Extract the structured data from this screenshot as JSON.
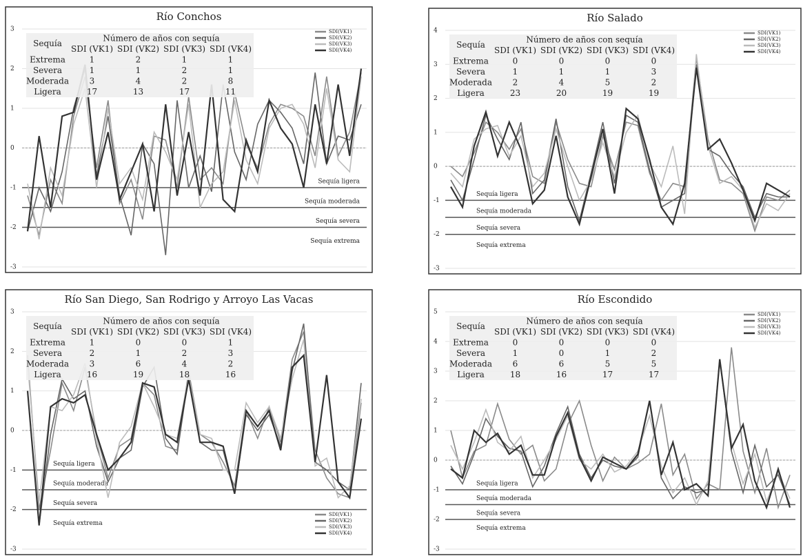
{
  "chart_data": [
    {
      "type": "line",
      "title": "Río Conchos",
      "legend": "top-right",
      "grid": true,
      "ylim": [
        -3,
        3
      ],
      "yticks": [
        -3,
        -2,
        -1,
        0,
        1,
        2,
        3
      ],
      "thresholds": [
        {
          "value": -1,
          "label": "Sequía ligera"
        },
        {
          "value": -1.5,
          "label": "Sequía moderada"
        },
        {
          "value": -2,
          "label": "Sequía severa"
        },
        {
          "value": -2.5,
          "label": "Sequía extrema"
        }
      ],
      "table": {
        "header": "Número de años con sequía",
        "row_header": "Sequía",
        "columns": [
          "SDI (VK1)",
          "SDI (VK2)",
          "SDI (VK3)",
          "SDI (VK4)"
        ],
        "rows": [
          [
            "Extrema",
            1,
            2,
            1,
            1
          ],
          [
            "Severa",
            1,
            1,
            2,
            1
          ],
          [
            "Moderada",
            3,
            4,
            2,
            8
          ],
          [
            "Ligera",
            17,
            13,
            17,
            11
          ]
        ]
      },
      "series": [
        {
          "name": "SDI(VK1)",
          "color": "#8a8a8a",
          "values": [
            -1.2,
            -2.2,
            -0.8,
            -1.4,
            0.8,
            1.8,
            -0.5,
            1.2,
            -1.4,
            -0.8,
            -1.8,
            0.3,
            0.2,
            -1.0,
            1.3,
            -0.8,
            -0.5,
            -0.9,
            1.4,
            0.1,
            -0.5,
            0.6,
            1.1,
            1.0,
            0.8,
            -0.2,
            1.8,
            -0.2,
            0.4,
            1.9
          ]
        },
        {
          "name": "SDI(VK2)",
          "color": "#666666",
          "values": [
            -2.1,
            -1.0,
            -1.6,
            -0.6,
            1.0,
            2.0,
            -0.7,
            0.8,
            -1.2,
            -2.2,
            0.1,
            -0.4,
            -2.7,
            1.2,
            -1.0,
            -0.2,
            -1.1,
            1.6,
            -0.1,
            -0.8,
            0.6,
            1.2,
            0.9,
            0.5,
            -0.4,
            1.9,
            -0.4,
            0.3,
            0.2,
            1.1
          ]
        },
        {
          "name": "SDI(VK3)",
          "color": "#bbbbbb",
          "values": [
            -0.9,
            -2.3,
            -0.5,
            -1.2,
            0.6,
            1.5,
            -1.0,
            1.0,
            -0.9,
            -0.5,
            -1.3,
            0.4,
            -0.1,
            -0.8,
            1.1,
            -1.5,
            -0.9,
            -0.6,
            1.2,
            -0.3,
            -0.9,
            0.5,
            1.0,
            1.1,
            0.6,
            -0.5,
            1.5,
            -0.3,
            -0.6,
            1.8
          ]
        },
        {
          "name": "SDI(VK4)",
          "color": "#333333",
          "values": [
            -2.1,
            0.3,
            -1.5,
            0.8,
            0.9,
            2.1,
            -0.8,
            0.4,
            -1.3,
            -0.6,
            0.1,
            -1.6,
            1.1,
            -1.2,
            0.4,
            -1.2,
            1.6,
            -1.3,
            -1.6,
            0.2,
            -0.6,
            1.2,
            0.5,
            0.1,
            -1.0,
            1.1,
            -0.4,
            1.6,
            -0.2,
            2.0
          ]
        }
      ]
    },
    {
      "type": "line",
      "title": "Río Salado",
      "legend": "top-right",
      "grid": true,
      "ylim": [
        -3,
        4
      ],
      "yticks": [
        -3,
        -2,
        -1,
        0,
        1,
        2,
        3,
        4
      ],
      "thresholds": [
        {
          "value": -1,
          "label": "Sequía ligera"
        },
        {
          "value": -1.5,
          "label": "Sequía moderada"
        },
        {
          "value": -2,
          "label": "Sequía severa"
        },
        {
          "value": -2.5,
          "label": "Sequía extrema"
        }
      ],
      "table": {
        "header": "Número de años con sequía",
        "row_header": "Sequía",
        "columns": [
          "SDI (VK1)",
          "SDI (VK2)",
          "SDI (VK3)",
          "SDI (VK4)"
        ],
        "rows": [
          [
            "Extrema",
            0,
            0,
            0,
            0
          ],
          [
            "Severa",
            1,
            1,
            1,
            3
          ],
          [
            "Moderada",
            2,
            4,
            5,
            2
          ],
          [
            "Ligera",
            23,
            20,
            19,
            19
          ]
        ]
      },
      "series": [
        {
          "name": "SDI(VK1)",
          "color": "#8a8a8a",
          "values": [
            0,
            -0.3,
            0.4,
            1.3,
            1.0,
            0.5,
            1.1,
            -0.3,
            -0.5,
            1.3,
            0.2,
            -0.5,
            -0.6,
            0.9,
            -0.1,
            1.3,
            1.2,
            -0.2,
            -1.0,
            -0.5,
            -0.6,
            3.2,
            0.8,
            -0.4,
            -0.5,
            -0.8,
            -1.9,
            -0.9,
            -1.0,
            -0.7
          ]
        },
        {
          "name": "SDI(VK2)",
          "color": "#666666",
          "values": [
            -0.4,
            -1.0,
            0.2,
            1.5,
            0.8,
            0.2,
            1.3,
            -0.8,
            -0.4,
            1.4,
            -0.6,
            -1.6,
            -0.2,
            1.3,
            -0.5,
            1.5,
            1.3,
            -0.1,
            -1.2,
            -1.0,
            -0.8,
            3.0,
            0.5,
            0.3,
            -0.2,
            -0.6,
            -1.5,
            -0.8,
            -0.9,
            -0.9
          ]
        },
        {
          "name": "SDI(VK3)",
          "color": "#bbbbbb",
          "values": [
            -0.2,
            -0.6,
            0.8,
            1.1,
            1.2,
            0.3,
            0.9,
            -0.6,
            -0.2,
            1.1,
            0.0,
            -1.0,
            -0.4,
            0.7,
            -0.3,
            1.0,
            1.5,
            0.1,
            -0.6,
            0.6,
            -1.4,
            3.3,
            0.6,
            -0.5,
            -0.3,
            -0.7,
            -1.8,
            -1.1,
            -1.3,
            -0.8
          ]
        },
        {
          "name": "SDI(VK4)",
          "color": "#333333",
          "values": [
            -0.6,
            -1.2,
            0.6,
            1.6,
            0.3,
            1.3,
            0.5,
            -1.1,
            -0.7,
            0.9,
            -0.9,
            -1.7,
            -0.3,
            1.1,
            -0.8,
            1.7,
            1.4,
            0.2,
            -1.2,
            -1.7,
            -0.5,
            2.9,
            0.5,
            0.8,
            0.1,
            -0.7,
            -1.6,
            -0.5,
            -0.7,
            -0.9
          ]
        }
      ]
    },
    {
      "type": "line",
      "title": "Río San Diego, San Rodrigo y Arroyo Las Vacas",
      "legend": "bottom-right",
      "grid": true,
      "ylim": [
        -3,
        3
      ],
      "yticks": [
        -3,
        -2,
        -1,
        0,
        1,
        2,
        3
      ],
      "thresholds": [
        {
          "value": -1,
          "label": "Sequía ligera"
        },
        {
          "value": -1.5,
          "label": "Sequía moderada"
        },
        {
          "value": -2,
          "label": "Sequía severa"
        },
        {
          "value": -2.5,
          "label": "Sequía extrema"
        }
      ],
      "table": {
        "header": "Número de años con sequía",
        "row_header": "Sequía",
        "columns": [
          "SDI (VK1)",
          "SDI (VK2)",
          "SDI (VK3)",
          "SDI (VK4)"
        ],
        "rows": [
          [
            "Extrema",
            1,
            0,
            0,
            1
          ],
          [
            "Severa",
            2,
            1,
            2,
            3
          ],
          [
            "Moderada",
            3,
            6,
            4,
            2
          ],
          [
            "Ligera",
            16,
            19,
            18,
            16
          ]
        ]
      },
      "series": [
        {
          "name": "SDI(VK1)",
          "color": "#8a8a8a",
          "values": [
            1.9,
            -2.0,
            -0.5,
            1.2,
            0.5,
            1.6,
            -0.1,
            -1.2,
            -0.4,
            -0.2,
            1.2,
            0.9,
            -0.4,
            -0.5,
            1.5,
            -0.1,
            -0.3,
            -0.8,
            -1.4,
            0.5,
            -0.2,
            0.6,
            -0.3,
            1.8,
            2.5,
            -0.5,
            -1.2,
            -1.6,
            -1.7,
            0.7
          ]
        },
        {
          "name": "SDI(VK2)",
          "color": "#666666",
          "values": [
            1.0,
            -2.4,
            -0.1,
            1.3,
            0.8,
            1.0,
            -0.4,
            -1.3,
            -0.7,
            -0.5,
            1.1,
            1.6,
            -0.2,
            -0.6,
            1.4,
            -0.3,
            -0.5,
            -0.5,
            -1.6,
            0.4,
            0.0,
            0.4,
            -0.4,
            1.5,
            2.7,
            -0.8,
            -1.0,
            -1.3,
            -1.5,
            1.2
          ]
        },
        {
          "name": "SDI(VK3)",
          "color": "#bbbbbb",
          "values": [
            1.7,
            -1.8,
            0.6,
            0.5,
            0.9,
            1.7,
            -0.2,
            -1.7,
            -0.3,
            0.1,
            1.2,
            0.6,
            -0.1,
            -0.2,
            1.4,
            -0.1,
            -0.2,
            -1.0,
            -1.0,
            0.7,
            0.2,
            0.6,
            -0.2,
            1.3,
            2.3,
            -0.9,
            -0.7,
            -1.7,
            -1.4,
            0.8
          ]
        },
        {
          "name": "SDI(VK4)",
          "color": "#333333",
          "values": [
            1.0,
            -2.4,
            0.6,
            0.8,
            0.7,
            0.9,
            -0.1,
            -1.0,
            -0.7,
            -0.3,
            1.2,
            1.1,
            -0.1,
            -0.3,
            1.3,
            -0.3,
            -0.3,
            -0.4,
            -1.6,
            0.5,
            0.1,
            0.5,
            -0.5,
            1.6,
            1.9,
            -0.8,
            1.4,
            -1.3,
            -1.7,
            0.3
          ]
        }
      ]
    },
    {
      "type": "line",
      "title": "Río Escondido",
      "legend": "top-right",
      "grid": true,
      "ylim": [
        -3,
        5
      ],
      "yticks": [
        -3,
        -2,
        -1,
        0,
        1,
        2,
        3,
        4,
        5
      ],
      "thresholds": [
        {
          "value": -1,
          "label": "Sequía ligera"
        },
        {
          "value": -1.5,
          "label": "Sequía moderada"
        },
        {
          "value": -2,
          "label": "Sequía severa"
        },
        {
          "value": -2.5,
          "label": "Sequía extrema"
        }
      ],
      "table": {
        "header": "Número de años con sequía",
        "row_header": "Sequía",
        "columns": [
          "SDI (VK1)",
          "SDI (VK2)",
          "SDI (VK3)",
          "SDI (VK4)"
        ],
        "rows": [
          [
            "Extrema",
            0,
            0,
            0,
            0
          ],
          [
            "Severa",
            1,
            0,
            1,
            2
          ],
          [
            "Moderada",
            6,
            6,
            5,
            5
          ],
          [
            "Ligera",
            18,
            16,
            17,
            17
          ]
        ]
      },
      "series": [
        {
          "name": "SDI(VK1)",
          "color": "#8a8a8a",
          "values": [
            1.0,
            -0.6,
            0.3,
            0.5,
            1.9,
            0.7,
            0.2,
            0.5,
            -0.7,
            -0.3,
            1.2,
            2.0,
            0.5,
            -0.7,
            0.1,
            -0.3,
            -0.1,
            0.2,
            1.9,
            -0.5,
            0.2,
            -1.3,
            -0.8,
            -1.0,
            3.8,
            0.3,
            -1.1,
            0.4,
            -1.6,
            -0.5
          ]
        },
        {
          "name": "SDI(VK2)",
          "color": "#666666",
          "values": [
            -0.2,
            -0.8,
            0.2,
            1.4,
            0.8,
            0.4,
            0.3,
            -0.9,
            -0.2,
            0.9,
            1.8,
            0.2,
            -0.6,
            0.0,
            -0.2,
            -0.3,
            0.1,
            2.0,
            -0.6,
            -1.3,
            -0.9,
            -1.1,
            -1.0,
            3.4,
            0.3,
            -1.1,
            0.5,
            -0.9,
            -0.5,
            -1.5
          ]
        },
        {
          "name": "SDI(VK3)",
          "color": "#bbbbbb",
          "values": [
            0.5,
            -0.3,
            0.6,
            1.7,
            0.6,
            0.3,
            0.8,
            -0.6,
            0.0,
            0.7,
            1.5,
            0.0,
            -0.3,
            0.2,
            -0.4,
            -0.2,
            0.3,
            1.5,
            -0.2,
            -1.1,
            -0.6,
            -1.5,
            -0.7,
            3.3,
            0.6,
            -0.8,
            0.2,
            -1.4,
            -0.4,
            -1.3
          ]
        },
        {
          "name": "SDI(VK4)",
          "color": "#333333",
          "values": [
            -0.3,
            -0.6,
            1.0,
            0.6,
            0.9,
            0.2,
            0.5,
            -0.5,
            -0.5,
            0.8,
            1.6,
            0.1,
            -0.7,
            0.1,
            -0.1,
            -0.3,
            0.2,
            2.0,
            -0.5,
            0.6,
            -1.0,
            -0.8,
            -1.2,
            3.4,
            0.4,
            1.2,
            -0.7,
            -1.6,
            -0.3,
            -1.6
          ]
        }
      ]
    }
  ]
}
